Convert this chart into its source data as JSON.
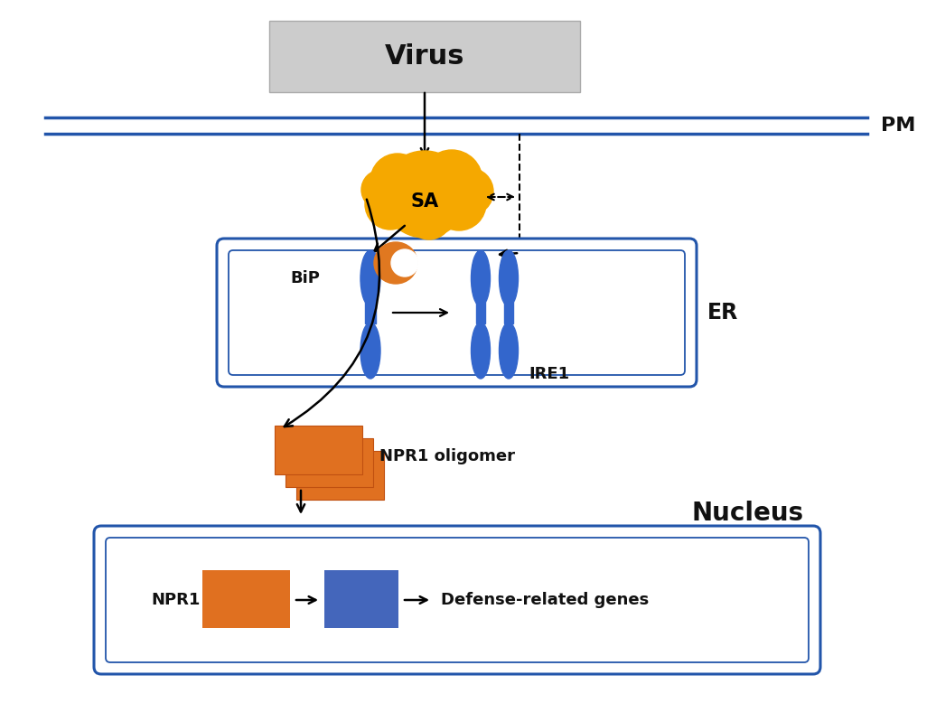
{
  "bg_color": "#ffffff",
  "pm_color": "#2255aa",
  "er_box_color": "#2255aa",
  "nucleus_box_color": "#2255aa",
  "virus_box_color": "#cccccc",
  "sa_color": "#f5a800",
  "ire1_color": "#3366cc",
  "bip_orange_color": "#e07820",
  "npr1_orange_color": "#e07020",
  "npr1_blue_color": "#4466bb",
  "text_color": "#111111",
  "virus_label": "Virus",
  "pm_label": "PM",
  "er_label": "ER",
  "sa_label": "SA",
  "bip_label": "BiP",
  "ire1_label": "IRE1",
  "npr1_oligo_label": "NPR1 oligomer",
  "nucleus_label": "Nucleus",
  "npr1_label": "NPR1",
  "defense_label": "Defense-related genes"
}
